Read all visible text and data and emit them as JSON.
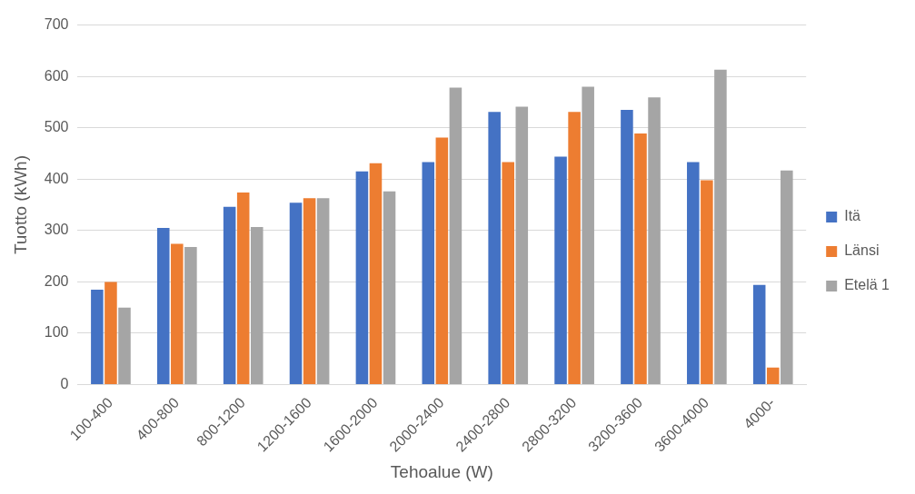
{
  "chart_data": {
    "type": "bar",
    "xlabel": "Tehoalue (W)",
    "ylabel": "Tuotto (kWh)",
    "categories": [
      "100-400",
      "400-800",
      "800-1200",
      "1200-1600",
      "1600-2000",
      "2000-2400",
      "2400-2800",
      "2800-3200",
      "3200-3600",
      "3600-4000",
      "4000-"
    ],
    "series": [
      {
        "name": "Itä",
        "color": "#4472c4",
        "values": [
          185,
          305,
          346,
          354,
          415,
          433,
          531,
          444,
          535,
          433,
          194
        ]
      },
      {
        "name": "Länsi",
        "color": "#ed7d31",
        "values": [
          200,
          274,
          374,
          363,
          431,
          481,
          433,
          531,
          489,
          398,
          33
        ]
      },
      {
        "name": "Etelä 1",
        "color": "#a5a5a5",
        "values": [
          150,
          268,
          307,
          363,
          376,
          578,
          541,
          580,
          559,
          613,
          417
        ]
      }
    ],
    "ylim": [
      0,
      700
    ],
    "yticks": [
      0,
      100,
      200,
      300,
      400,
      500,
      600,
      700
    ],
    "grid": "y",
    "legend": "right"
  }
}
